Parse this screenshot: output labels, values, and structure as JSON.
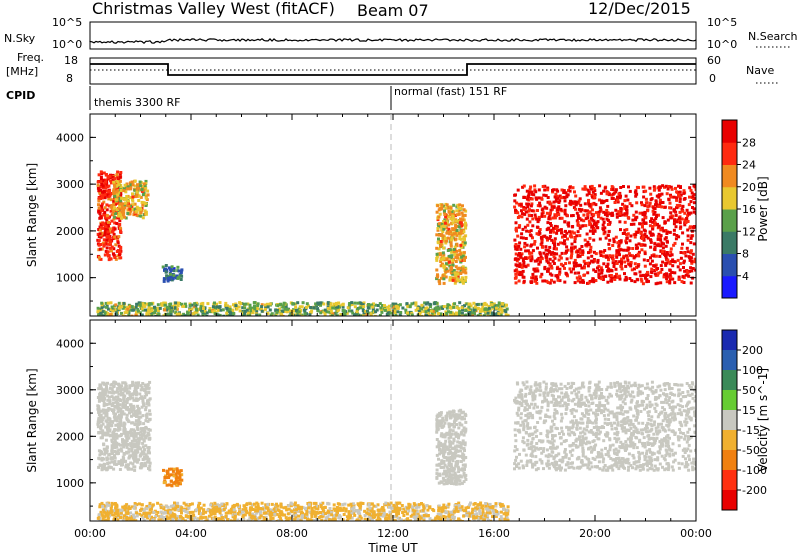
{
  "header": {
    "title": "Christmas Valley West (fitACF)",
    "beam": "Beam 07",
    "date": "12/Dec/2015"
  },
  "top_panels": {
    "nsky_label": "N.Sky",
    "nsky_ticks": [
      "10^5",
      "10^0"
    ],
    "nsearch_label": "N.Search",
    "nsearch_ticks": [
      "10^5",
      "10^0"
    ],
    "freq_label_line1": "Freq.",
    "freq_label_line2": "[MHz]",
    "freq_ticks": [
      "18",
      "8"
    ],
    "nave_label": "Nave",
    "nave_ticks": [
      "60",
      "0"
    ],
    "cpid_label": "CPID",
    "cpid_segments": [
      "themis 3300 RF",
      "normal (fast) 151 RF"
    ]
  },
  "chart_data": [
    {
      "type": "heatmap",
      "title": "",
      "xlabel": "",
      "ylabel": "Slant Range [km]",
      "xlim": [
        "00:00",
        "00:00"
      ],
      "ylim": [
        180,
        4500
      ],
      "y_ticks": [
        "1000",
        "2000",
        "3000",
        "4000"
      ],
      "colorbar": {
        "label": "Power [dB]",
        "ticks": [
          "4",
          "8",
          "12",
          "16",
          "20",
          "24",
          "28"
        ],
        "range": [
          0,
          30
        ],
        "colors": [
          "#1a1aff",
          "#2a4fb0",
          "#3a7a66",
          "#5aa04a",
          "#e8c830",
          "#f08a20",
          "#ff2a10",
          "#e80000"
        ]
      },
      "regions": [
        {
          "time": [
            "00:15",
            "01:10"
          ],
          "range_km": [
            1400,
            3300
          ],
          "power_db": 25
        },
        {
          "time": [
            "00:50",
            "02:15"
          ],
          "range_km": [
            2300,
            3100
          ],
          "power_db": 18
        },
        {
          "time": [
            "02:50",
            "03:35"
          ],
          "range_km": [
            950,
            1300
          ],
          "power_db": 8
        },
        {
          "time": [
            "00:15",
            "16:30"
          ],
          "range_km": [
            200,
            500
          ],
          "power_db": 14
        },
        {
          "time": [
            "13:40",
            "14:50"
          ],
          "range_km": [
            900,
            2600
          ],
          "power_db": 18
        },
        {
          "time": [
            "16:45",
            "00:00"
          ],
          "range_km": [
            900,
            3000
          ],
          "power_db": 28
        }
      ]
    },
    {
      "type": "heatmap",
      "title": "",
      "xlabel": "Time UT",
      "ylabel": "Slant Range [km]",
      "xlim": [
        "00:00",
        "00:00"
      ],
      "ylim": [
        180,
        4500
      ],
      "x_ticks": [
        "00:00",
        "04:00",
        "08:00",
        "12:00",
        "16:00",
        "20:00",
        "00:00"
      ],
      "y_ticks": [
        "1000",
        "2000",
        "3000",
        "4000"
      ],
      "colorbar": {
        "label": "Velocity [m s^-1]",
        "ticks": [
          "200",
          "100",
          "50",
          "15",
          "-15",
          "-50",
          "-100",
          "-200"
        ],
        "colors": [
          "#1a2ab0",
          "#2a5fb0",
          "#3a8a58",
          "#66cc33",
          "#c8c8c0",
          "#f0b030",
          "#f08010",
          "#ff3010",
          "#e80000"
        ]
      },
      "regions": [
        {
          "time": [
            "00:15",
            "02:20"
          ],
          "range_km": [
            1300,
            3200
          ],
          "velocity_ms": 0
        },
        {
          "time": [
            "02:50",
            "03:35"
          ],
          "range_km": [
            950,
            1350
          ],
          "velocity_ms": -60
        },
        {
          "time": [
            "00:15",
            "16:30"
          ],
          "range_km": [
            200,
            600
          ],
          "velocity_ms": -20
        },
        {
          "time": [
            "13:40",
            "14:50"
          ],
          "range_km": [
            1000,
            2600
          ],
          "velocity_ms": 0
        },
        {
          "time": [
            "16:45",
            "00:00"
          ],
          "range_km": [
            1300,
            3200
          ],
          "velocity_ms": 0
        }
      ]
    }
  ]
}
